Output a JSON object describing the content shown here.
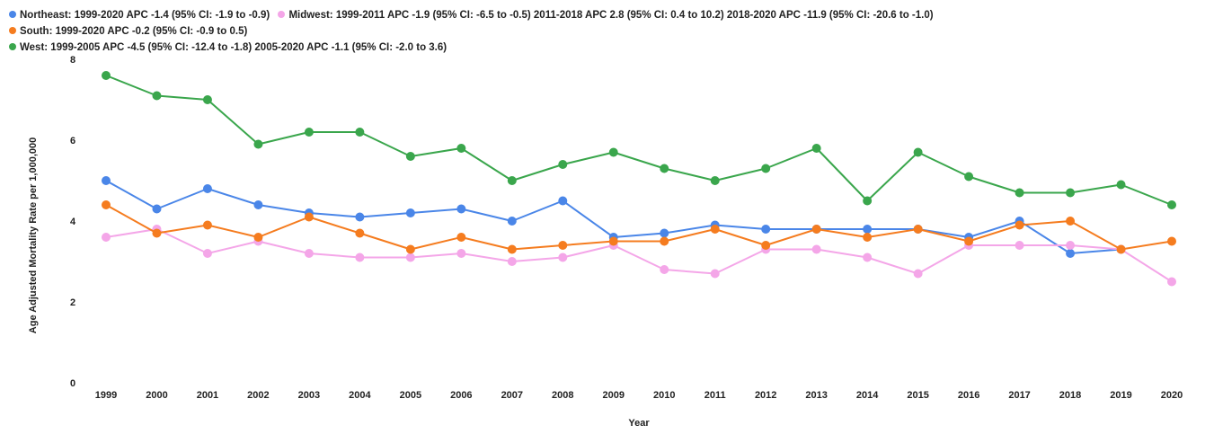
{
  "chart_data": {
    "type": "line",
    "title": "",
    "xlabel": "Year",
    "ylabel": "Age Adjusted Mortality Rate per 1,000,000",
    "ylim": [
      0,
      8
    ],
    "yticks": [
      "0",
      "2",
      "4",
      "6",
      "8"
    ],
    "grid": false,
    "legend_position": "top",
    "categories": [
      "1999",
      "2000",
      "2001",
      "2002",
      "2003",
      "2004",
      "2005",
      "2006",
      "2007",
      "2008",
      "2009",
      "2010",
      "2011",
      "2012",
      "2013",
      "2014",
      "2015",
      "2016",
      "2017",
      "2018",
      "2019",
      "2020"
    ],
    "series": [
      {
        "name": "Northeast: 1999-2020 APC -1.4 (95% CI: -1.9 to -0.9)",
        "color": "#4a86e8",
        "values": [
          5.0,
          4.3,
          4.8,
          4.4,
          4.2,
          4.1,
          4.2,
          4.3,
          4.0,
          4.5,
          3.6,
          3.7,
          3.9,
          3.8,
          3.8,
          3.8,
          3.8,
          3.6,
          4.0,
          3.2,
          3.3,
          null
        ]
      },
      {
        "name": "Midwest: 1999-2011 APC -1.9 (95% CI: -6.5 to -0.5) 2011-2018 APC 2.8 (95% CI: 0.4 to 10.2) 2018-2020 APC -11.9 (95% CI: -20.6 to -1.0)",
        "color": "#f4a6e8",
        "values": [
          3.6,
          3.8,
          3.2,
          3.5,
          3.2,
          3.1,
          3.1,
          3.2,
          3.0,
          3.1,
          3.4,
          2.8,
          2.7,
          3.3,
          3.3,
          3.1,
          2.7,
          3.4,
          3.4,
          3.4,
          3.3,
          2.5
        ]
      },
      {
        "name": "South: 1999-2020 APC -0.2 (95% CI: -0.9 to 0.5)",
        "color": "#f57c1f",
        "values": [
          4.4,
          3.7,
          3.9,
          3.6,
          4.1,
          3.7,
          3.3,
          3.6,
          3.3,
          3.4,
          3.5,
          3.5,
          3.8,
          3.4,
          3.8,
          3.6,
          3.8,
          3.5,
          3.9,
          4.0,
          3.3,
          3.5
        ]
      },
      {
        "name": "West: 1999-2005 APC -4.5 (95% CI: -12.4 to -1.8) 2005-2020 APC -1.1 (95% CI: -2.0 to 3.6)",
        "color": "#3aa64c",
        "values": [
          7.6,
          7.1,
          7.0,
          5.9,
          6.2,
          6.2,
          5.6,
          5.8,
          5.0,
          5.4,
          5.7,
          5.3,
          5.0,
          5.3,
          5.8,
          4.5,
          5.7,
          5.1,
          4.7,
          4.7,
          4.9,
          4.4
        ]
      }
    ]
  }
}
